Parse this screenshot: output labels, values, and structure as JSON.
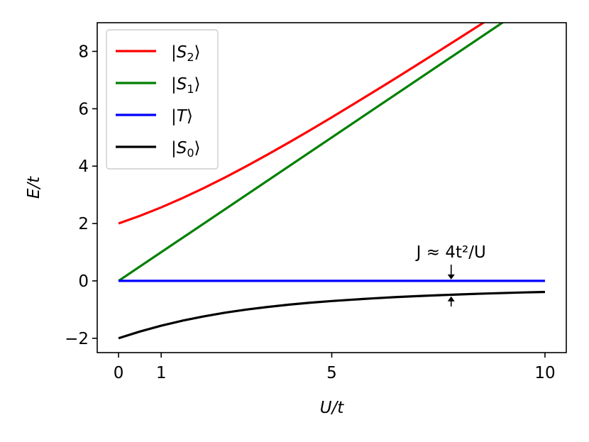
{
  "chart_data": {
    "type": "line",
    "title": "",
    "xlabel": "U/t",
    "ylabel": "E/t",
    "xlim": [
      -0.5,
      10.5
    ],
    "ylim": [
      -2.5,
      9.0
    ],
    "xticks": [
      0,
      1,
      5,
      10
    ],
    "xtick_labels": [
      "0",
      "1",
      "5",
      "10"
    ],
    "yticks": [
      -2,
      0,
      2,
      4,
      6,
      8
    ],
    "ytick_labels": [
      "−2",
      "0",
      "2",
      "4",
      "6",
      "8"
    ],
    "grid": false,
    "legend": {
      "placement": "top-left"
    },
    "series": [
      {
        "name": "|S₂⟩",
        "color": "#ff0000",
        "x": [
          0,
          0.5,
          1,
          1.5,
          2,
          2.5,
          3,
          3.5,
          4,
          4.5,
          5,
          5.5,
          6,
          6.5,
          7,
          7.5,
          8,
          8.5,
          9,
          9.5,
          10
        ],
        "y": [
          2.0,
          2.266,
          2.562,
          2.886,
          3.236,
          3.608,
          4.0,
          4.408,
          4.828,
          5.259,
          5.702,
          6.153,
          6.606,
          7.064,
          7.531,
          8.0,
          8.472,
          8.946,
          9.424,
          9.902,
          10.385
        ]
      },
      {
        "name": "|S₁⟩",
        "color": "#008000",
        "x": [
          0,
          10
        ],
        "y": [
          0,
          10
        ]
      },
      {
        "name": "|T⟩",
        "color": "#0000ff",
        "x": [
          0,
          10
        ],
        "y": [
          0,
          0
        ]
      },
      {
        "name": "|S₀⟩",
        "color": "#000000",
        "x": [
          0,
          0.5,
          1,
          1.5,
          2,
          2.5,
          3,
          3.5,
          4,
          4.5,
          5,
          5.5,
          6,
          6.5,
          7,
          7.5,
          8,
          8.5,
          9,
          9.5,
          10
        ],
        "y": [
          -2.0,
          -1.766,
          -1.562,
          -1.386,
          -1.236,
          -1.108,
          -1.0,
          -0.908,
          -0.828,
          -0.759,
          -0.702,
          -0.653,
          -0.606,
          -0.564,
          -0.531,
          -0.5,
          -0.472,
          -0.446,
          -0.424,
          -0.402,
          -0.385
        ]
      }
    ],
    "annotation": {
      "text": "J ≈ 4t²/U",
      "x": 7.8,
      "top_y": 0,
      "bottom_y": -0.49
    }
  }
}
